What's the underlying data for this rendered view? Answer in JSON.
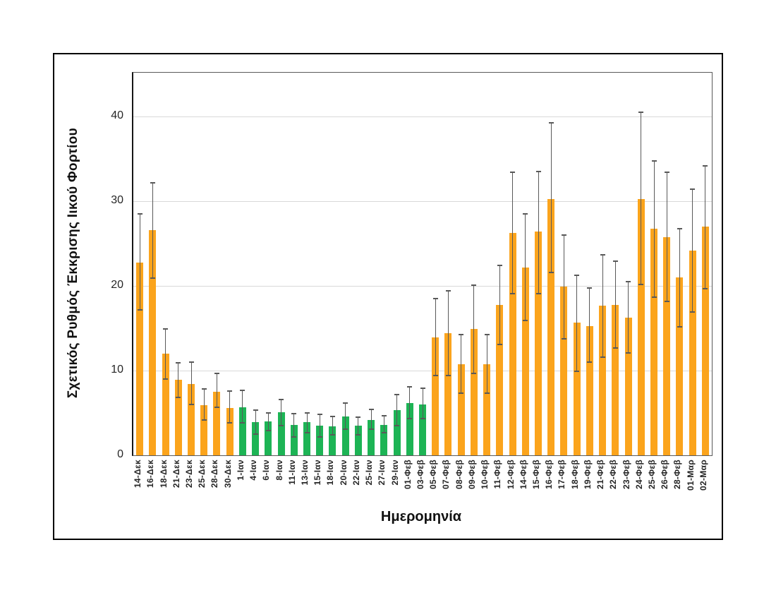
{
  "figure": {
    "y_axis_title": "Σχετικός Ρυθμός Έκκρισης Ιικού Φορτίου",
    "x_axis_title": "Ημερομηνία"
  },
  "palette": {
    "orange": "#fba41c",
    "green": "#1db455",
    "error_bar": "#595959",
    "gridline": "#d9d9d9",
    "frame": "#000000"
  },
  "chart_data": {
    "type": "bar",
    "title": "",
    "xlabel": "Ημερομηνία",
    "ylabel": "Σχετικός Ρυθμός Έκκρισης Ιικού Φορτίου",
    "ylim": [
      0,
      45.2
    ],
    "yticks": [
      0,
      10,
      20,
      30,
      40
    ],
    "grid": true,
    "legend_position": "none",
    "error_bars": true,
    "categories": [
      "14-Δεκ",
      "16-Δεκ",
      "18-Δεκ",
      "21-Δεκ",
      "23-Δεκ",
      "25-Δεκ",
      "28-Δεκ",
      "30-Δεκ",
      "1-Ιαν",
      "4-Ιαν",
      "6-Ιαν",
      "8-Ιαν",
      "11-Ιαν",
      "13-Ιαν",
      "15-Ιαν",
      "18-Ιαν",
      "20-Ιαν",
      "22-Ιαν",
      "25-Ιαν",
      "27-Ιαν",
      "29-Ιαν",
      "01-Φεβ",
      "03-Φεβ",
      "05-Φεβ",
      "07-Φεβ",
      "08-Φεβ",
      "09-Φεβ",
      "10-Φεβ",
      "11-Φεβ",
      "12-Φεβ",
      "14-Φεβ",
      "15-Φεβ",
      "16-Φεβ",
      "17-Φεβ",
      "18-Φεβ",
      "19-Φεβ",
      "21-Φεβ",
      "22-Φεβ",
      "23-Φεβ",
      "24-Φεβ",
      "25-Φεβ",
      "26-Φεβ",
      "28-Φεβ",
      "01-Μαρ",
      "02-Μαρ"
    ],
    "values": [
      22.8,
      26.6,
      12.0,
      8.9,
      8.4,
      5.9,
      7.5,
      5.6,
      5.7,
      3.9,
      4.0,
      5.1,
      3.6,
      3.9,
      3.5,
      3.4,
      4.6,
      3.5,
      4.2,
      3.6,
      5.3,
      6.2,
      6.0,
      13.9,
      14.4,
      10.8,
      14.9,
      10.8,
      17.8,
      26.3,
      22.2,
      26.4,
      30.3,
      19.9,
      15.7,
      15.3,
      17.7,
      17.8,
      16.3,
      30.3,
      26.8,
      25.8,
      21.0,
      24.2,
      27.0
    ],
    "err_low": [
      17.2,
      20.9,
      9.0,
      6.8,
      6.0,
      4.2,
      5.7,
      3.8,
      3.8,
      2.5,
      2.9,
      3.5,
      2.2,
      2.7,
      2.2,
      2.4,
      3.1,
      2.4,
      3.1,
      2.7,
      3.5,
      4.3,
      4.3,
      9.4,
      9.4,
      7.3,
      9.7,
      7.3,
      13.1,
      19.1,
      15.9,
      19.1,
      21.6,
      13.8,
      9.9,
      11.0,
      11.6,
      12.7,
      12.1,
      20.2,
      18.7,
      18.2,
      15.2,
      16.9,
      19.7
    ],
    "err_high": [
      28.5,
      32.2,
      14.9,
      10.9,
      11.0,
      7.8,
      9.7,
      7.6,
      7.7,
      5.3,
      5.0,
      6.6,
      4.9,
      5.0,
      4.8,
      4.6,
      6.2,
      4.5,
      5.4,
      4.7,
      7.2,
      8.1,
      7.9,
      18.5,
      19.4,
      14.3,
      20.1,
      14.3,
      22.4,
      33.4,
      28.5,
      33.5,
      39.3,
      26.0,
      21.3,
      19.8,
      23.7,
      22.9,
      20.5,
      40.5,
      34.8,
      33.4,
      26.8,
      31.4,
      34.2
    ],
    "bar_colors": [
      "orange",
      "orange",
      "orange",
      "orange",
      "orange",
      "orange",
      "orange",
      "orange",
      "green",
      "green",
      "green",
      "green",
      "green",
      "green",
      "green",
      "green",
      "green",
      "green",
      "green",
      "green",
      "green",
      "green",
      "green",
      "orange",
      "orange",
      "orange",
      "orange",
      "orange",
      "orange",
      "orange",
      "orange",
      "orange",
      "orange",
      "orange",
      "orange",
      "orange",
      "orange",
      "orange",
      "orange",
      "orange",
      "orange",
      "orange",
      "orange",
      "orange",
      "orange"
    ]
  }
}
